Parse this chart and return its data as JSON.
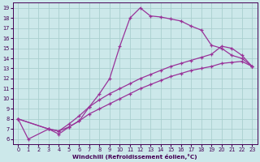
{
  "xlabel": "Windchill (Refroidissement éolien,°C)",
  "bg_color": "#cce8ea",
  "line_color": "#993399",
  "grid_color": "#aacfcf",
  "xlim": [
    -0.5,
    23.5
  ],
  "ylim": [
    5.5,
    19.5
  ],
  "xticks": [
    0,
    1,
    2,
    3,
    4,
    5,
    6,
    7,
    8,
    9,
    10,
    11,
    12,
    13,
    14,
    15,
    16,
    17,
    18,
    19,
    20,
    21,
    22,
    23
  ],
  "yticks": [
    6,
    7,
    8,
    9,
    10,
    11,
    12,
    13,
    14,
    15,
    16,
    17,
    18,
    19
  ],
  "curve1_x": [
    0,
    1,
    3,
    4,
    5,
    6,
    7,
    8,
    9,
    10,
    11,
    12,
    13,
    14,
    15,
    16,
    17,
    18,
    19,
    20,
    21,
    22,
    23
  ],
  "curve1_y": [
    8.0,
    6.0,
    7.0,
    6.5,
    7.2,
    7.8,
    9.2,
    10.5,
    12.0,
    15.2,
    18.0,
    19.0,
    18.2,
    18.1,
    17.9,
    17.7,
    17.2,
    16.8,
    15.3,
    15.0,
    14.3,
    14.0,
    13.2
  ],
  "curve2_x": [
    0,
    3,
    4,
    5,
    6,
    7,
    8,
    9,
    10,
    11,
    12,
    13,
    14,
    15,
    16,
    17,
    18,
    19,
    20,
    21,
    22,
    23
  ],
  "curve2_y": [
    8.0,
    7.0,
    6.8,
    7.2,
    7.8,
    8.5,
    9.0,
    9.5,
    10.0,
    10.5,
    11.0,
    11.4,
    11.8,
    12.2,
    12.5,
    12.8,
    13.0,
    13.2,
    13.5,
    13.6,
    13.7,
    13.2
  ],
  "curve3_x": [
    0,
    3,
    4,
    5,
    6,
    7,
    8,
    9,
    10,
    11,
    12,
    13,
    14,
    15,
    16,
    17,
    18,
    19,
    20,
    21,
    22,
    23
  ],
  "curve3_y": [
    8.0,
    7.0,
    6.8,
    7.5,
    8.3,
    9.2,
    9.9,
    10.5,
    11.0,
    11.5,
    12.0,
    12.4,
    12.8,
    13.2,
    13.5,
    13.8,
    14.1,
    14.4,
    15.2,
    15.0,
    14.3,
    13.2
  ]
}
